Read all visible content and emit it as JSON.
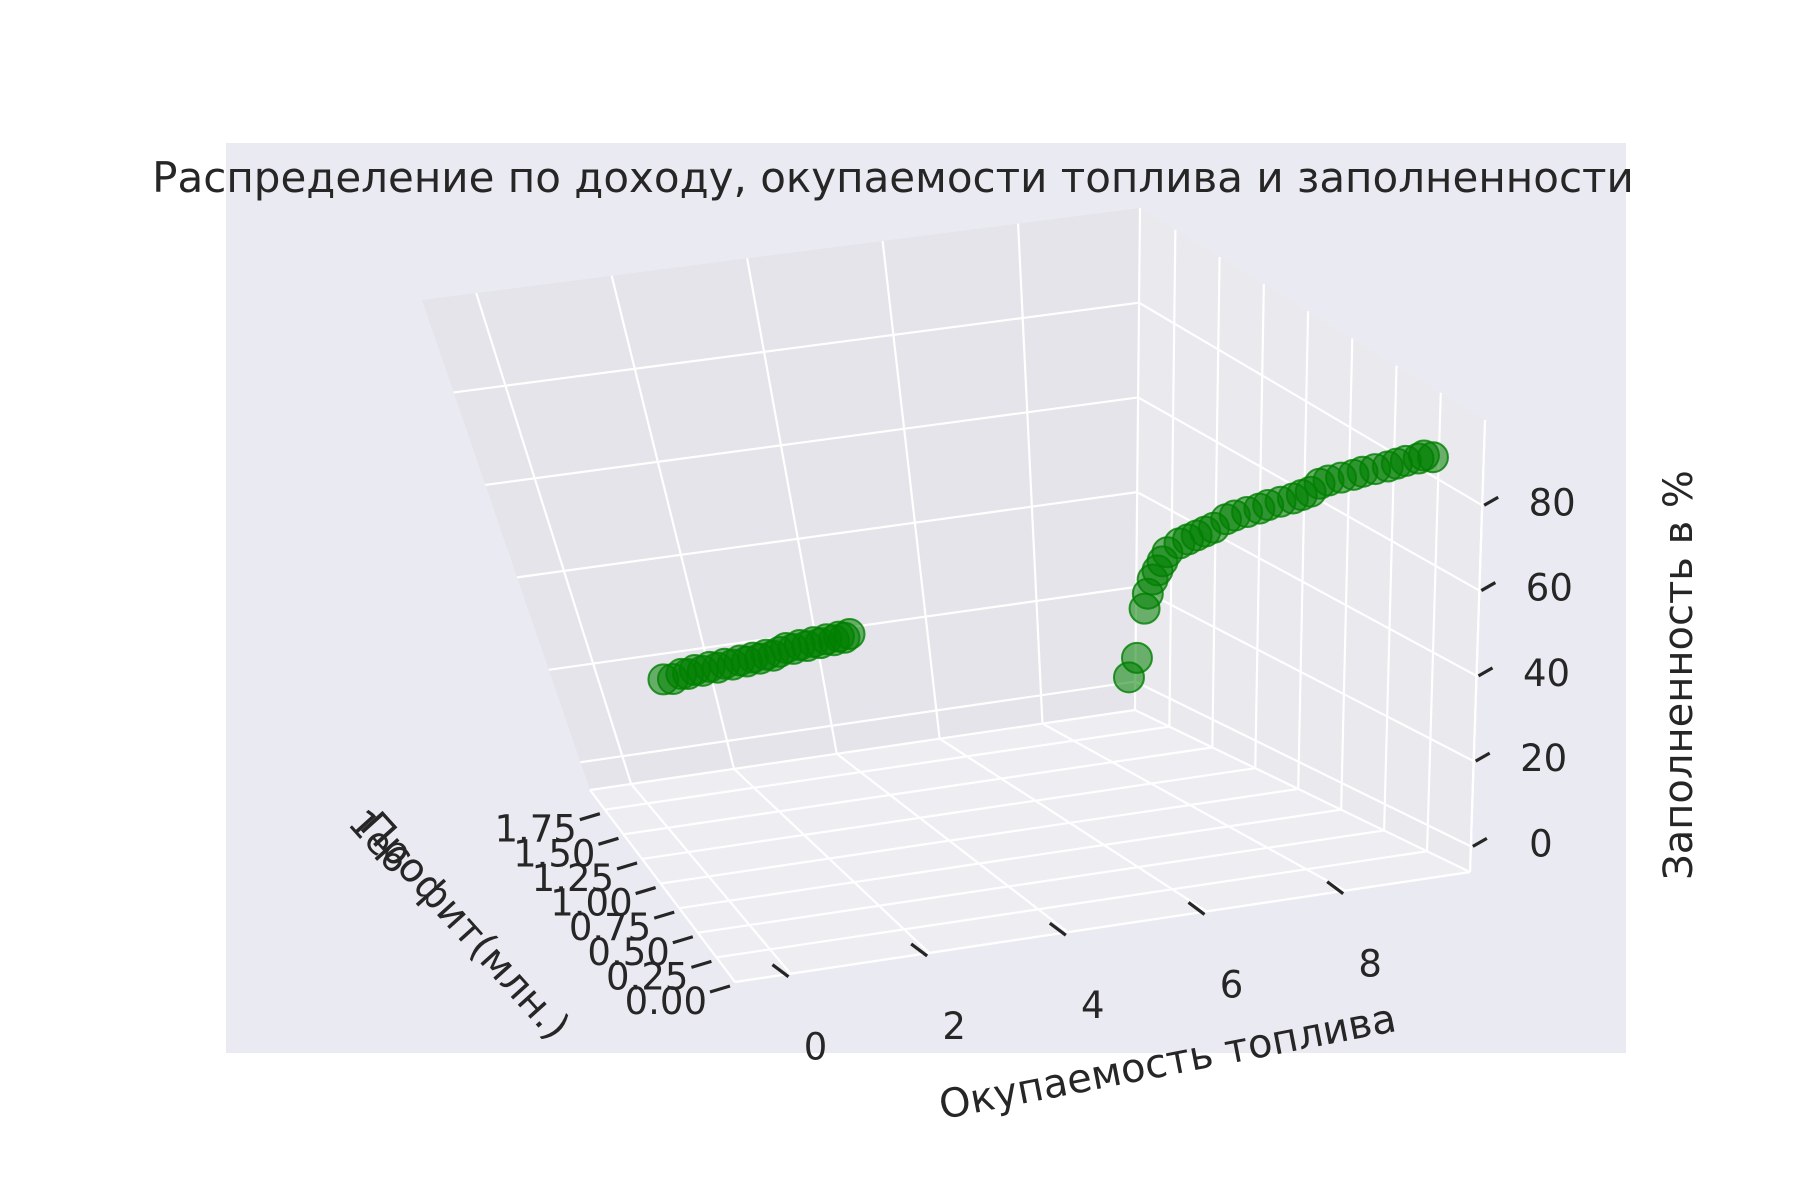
{
  "chart_data": {
    "type": "scatter",
    "projection": "3d",
    "title": "Распределение по доходу, окупаемости топлива и заполненности",
    "xlabel": "Профит(млн.)",
    "ylabel": "Окупаемость топлива",
    "zlabel": "Заполненность в %",
    "x_offset_label": "1e6",
    "xlim": [
      0,
      1.95
    ],
    "ylim": [
      -0.8,
      9.8
    ],
    "zlim": [
      -6,
      100
    ],
    "x_ticks": [
      "0.00",
      "0.25",
      "0.50",
      "0.75",
      "1.00",
      "1.25",
      "1.50",
      "1.75"
    ],
    "y_ticks": [
      "0",
      "2",
      "4",
      "6",
      "8"
    ],
    "z_ticks": [
      "0",
      "20",
      "40",
      "60",
      "80"
    ],
    "colors": {
      "pane": "#eaeaf2",
      "grid": "#ffffff",
      "marker": "#008000"
    },
    "grid": true,
    "series": [
      {
        "marker_color": "#008000",
        "points": [
          {
            "x": 0.0,
            "y": 9.1,
            "z": 90
          },
          {
            "x": 0.01,
            "y": 9.0,
            "z": 90
          },
          {
            "x": 0.02,
            "y": 8.95,
            "z": 89
          },
          {
            "x": 0.03,
            "y": 8.8,
            "z": 88
          },
          {
            "x": 0.04,
            "y": 8.7,
            "z": 87
          },
          {
            "x": 0.05,
            "y": 8.6,
            "z": 86
          },
          {
            "x": 0.06,
            "y": 8.45,
            "z": 85
          },
          {
            "x": 0.07,
            "y": 8.3,
            "z": 84
          },
          {
            "x": 0.08,
            "y": 8.2,
            "z": 83
          },
          {
            "x": 0.09,
            "y": 8.05,
            "z": 82
          },
          {
            "x": 0.1,
            "y": 7.9,
            "z": 81
          },
          {
            "x": 0.11,
            "y": 7.8,
            "z": 80
          },
          {
            "x": 0.12,
            "y": 7.7,
            "z": 78
          },
          {
            "x": 0.13,
            "y": 7.6,
            "z": 77
          },
          {
            "x": 0.14,
            "y": 7.5,
            "z": 76
          },
          {
            "x": 0.15,
            "y": 7.35,
            "z": 75
          },
          {
            "x": 0.16,
            "y": 7.2,
            "z": 74
          },
          {
            "x": 0.17,
            "y": 7.1,
            "z": 73
          },
          {
            "x": 0.18,
            "y": 6.95,
            "z": 72
          },
          {
            "x": 0.19,
            "y": 6.8,
            "z": 71
          },
          {
            "x": 0.2,
            "y": 6.7,
            "z": 70
          },
          {
            "x": 0.21,
            "y": 6.55,
            "z": 68
          },
          {
            "x": 0.22,
            "y": 6.45,
            "z": 67
          },
          {
            "x": 0.23,
            "y": 6.35,
            "z": 66
          },
          {
            "x": 0.24,
            "y": 6.25,
            "z": 65
          },
          {
            "x": 0.25,
            "y": 6.15,
            "z": 64
          },
          {
            "x": 0.26,
            "y": 6.0,
            "z": 62
          },
          {
            "x": 0.27,
            "y": 5.95,
            "z": 60
          },
          {
            "x": 0.28,
            "y": 5.9,
            "z": 58
          },
          {
            "x": 0.29,
            "y": 5.85,
            "z": 56
          },
          {
            "x": 0.3,
            "y": 5.8,
            "z": 53
          },
          {
            "x": 0.3,
            "y": 5.75,
            "z": 50
          },
          {
            "x": 0.31,
            "y": 5.65,
            "z": 40
          },
          {
            "x": 0.32,
            "y": 5.55,
            "z": 36
          },
          {
            "x": 1.27,
            "y": 3.25,
            "z": 32
          },
          {
            "x": 1.29,
            "y": 3.2,
            "z": 31
          },
          {
            "x": 1.31,
            "y": 3.15,
            "z": 31
          },
          {
            "x": 1.33,
            "y": 3.1,
            "z": 30
          },
          {
            "x": 1.35,
            "y": 3.02,
            "z": 30
          },
          {
            "x": 1.37,
            "y": 2.95,
            "z": 29
          },
          {
            "x": 1.39,
            "y": 2.88,
            "z": 29
          },
          {
            "x": 1.41,
            "y": 2.8,
            "z": 28
          },
          {
            "x": 1.43,
            "y": 2.72,
            "z": 28
          },
          {
            "x": 1.45,
            "y": 2.64,
            "z": 27
          },
          {
            "x": 1.47,
            "y": 2.56,
            "z": 27
          },
          {
            "x": 1.49,
            "y": 2.48,
            "z": 26
          },
          {
            "x": 1.51,
            "y": 2.4,
            "z": 25
          },
          {
            "x": 1.53,
            "y": 2.32,
            "z": 25
          },
          {
            "x": 1.55,
            "y": 2.24,
            "z": 24
          },
          {
            "x": 1.57,
            "y": 2.16,
            "z": 24
          },
          {
            "x": 1.59,
            "y": 2.08,
            "z": 23
          },
          {
            "x": 1.61,
            "y": 2.0,
            "z": 23
          },
          {
            "x": 1.63,
            "y": 1.9,
            "z": 22
          },
          {
            "x": 1.65,
            "y": 1.8,
            "z": 22
          },
          {
            "x": 1.67,
            "y": 1.7,
            "z": 21
          },
          {
            "x": 1.69,
            "y": 1.6,
            "z": 21
          },
          {
            "x": 1.71,
            "y": 1.5,
            "z": 20
          },
          {
            "x": 1.73,
            "y": 1.4,
            "z": 20
          },
          {
            "x": 1.75,
            "y": 1.3,
            "z": 19
          },
          {
            "x": 1.76,
            "y": 1.2,
            "z": 19
          },
          {
            "x": 1.77,
            "y": 1.05,
            "z": 18
          },
          {
            "x": 1.78,
            "y": 0.9,
            "z": 18
          }
        ]
      }
    ]
  }
}
